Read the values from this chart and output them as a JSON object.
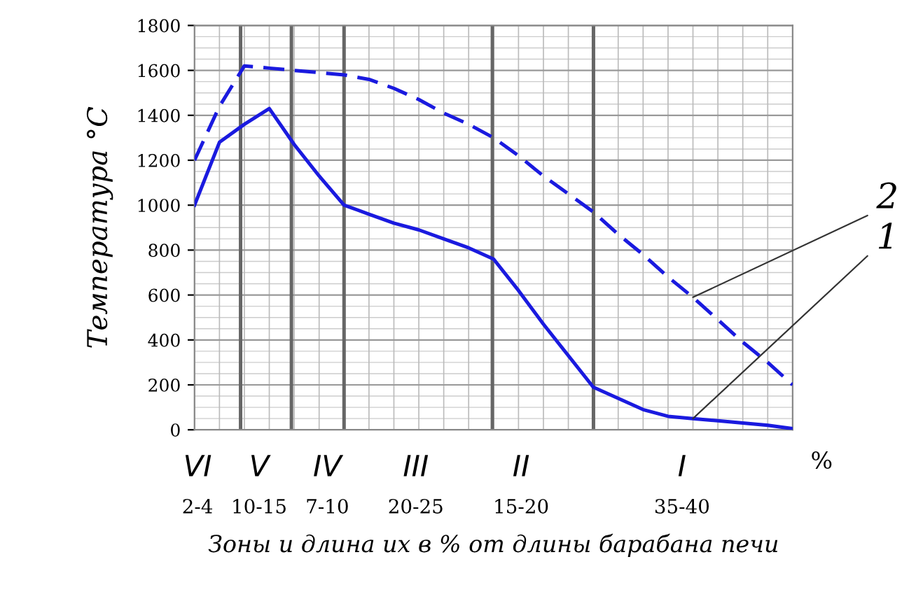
{
  "chart_data": {
    "type": "line",
    "ylabel": "Температура °С",
    "xlabel": "Зоны и длина их в % от длины барабана печи",
    "categories": [
      null,
      null,
      null,
      null,
      null,
      null,
      null,
      null,
      null,
      null,
      null,
      null,
      null,
      null,
      null,
      null,
      null,
      null,
      null,
      null,
      null,
      null,
      null,
      null,
      null
    ],
    "ylim": [
      0,
      1800
    ],
    "yticks": [
      0,
      200,
      400,
      600,
      800,
      1000,
      1200,
      1400,
      1600,
      1800
    ],
    "grid": true,
    "series": [
      {
        "color": "#1a1adf",
        "line_style": "solid",
        "values": [
          1000,
          1280,
          1360,
          1430,
          1270,
          1130,
          1000,
          960,
          920,
          890,
          850,
          810,
          760,
          620,
          470,
          330,
          190,
          140,
          90,
          60,
          50,
          40,
          30,
          20,
          5
        ]
      },
      {
        "color": "#1a1adf",
        "line_style": "dashed",
        "values": [
          1200,
          1440,
          1620,
          1610,
          1600,
          1590,
          1580,
          1560,
          1520,
          1470,
          1410,
          1360,
          1300,
          1220,
          1130,
          1050,
          970,
          870,
          780,
          680,
          590,
          490,
          390,
          300,
          200
        ]
      }
    ],
    "annotations": [
      "VI",
      "V",
      "IV",
      "III",
      "II",
      "I",
      "2-4",
      "10-15",
      "7-10",
      "20-25",
      "15-20",
      "35-40",
      "2",
      "1",
      "%"
    ]
  }
}
